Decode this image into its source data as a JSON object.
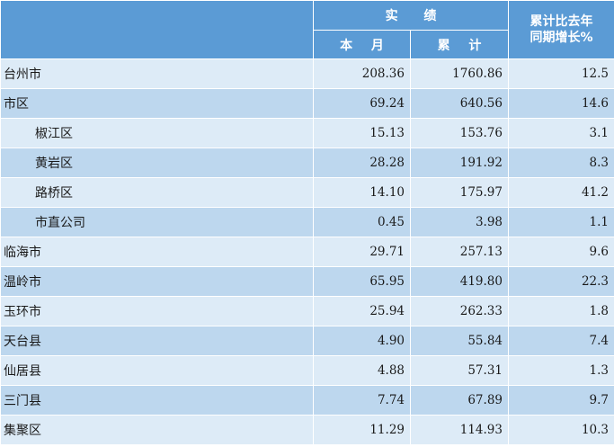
{
  "header": {
    "actual": "实 绩",
    "month": "本 月",
    "cumulative": "累 计",
    "growth_line1": "累计比去年",
    "growth_line2": "同期增长%"
  },
  "rows": [
    {
      "name": "台州市",
      "month": "208.36",
      "cumulative": "1760.86",
      "growth": "12.5",
      "sub": false
    },
    {
      "name": "市区",
      "month": "69.24",
      "cumulative": "640.56",
      "growth": "14.6",
      "sub": false
    },
    {
      "name": "椒江区",
      "month": "15.13",
      "cumulative": "153.76",
      "growth": "3.1",
      "sub": true
    },
    {
      "name": "黄岩区",
      "month": "28.28",
      "cumulative": "191.92",
      "growth": "8.3",
      "sub": true
    },
    {
      "name": "路桥区",
      "month": "14.10",
      "cumulative": "175.97",
      "growth": "41.2",
      "sub": true
    },
    {
      "name": "市直公司",
      "month": "0.45",
      "cumulative": "3.98",
      "growth": "1.1",
      "sub": true
    },
    {
      "name": "临海市",
      "month": "29.71",
      "cumulative": "257.13",
      "growth": "9.6",
      "sub": false
    },
    {
      "name": "温岭市",
      "month": "65.95",
      "cumulative": "419.80",
      "growth": "22.3",
      "sub": false
    },
    {
      "name": "玉环市",
      "month": "25.94",
      "cumulative": "262.33",
      "growth": "1.8",
      "sub": false
    },
    {
      "name": "天台县",
      "month": "4.90",
      "cumulative": "55.84",
      "growth": "7.4",
      "sub": false
    },
    {
      "name": "仙居县",
      "month": "4.88",
      "cumulative": "57.31",
      "growth": "1.3",
      "sub": false
    },
    {
      "name": "三门县",
      "month": "7.74",
      "cumulative": "67.89",
      "growth": "9.7",
      "sub": false
    },
    {
      "name": "集聚区",
      "month": "11.29",
      "cumulative": "114.93",
      "growth": "10.3",
      "sub": false
    }
  ]
}
